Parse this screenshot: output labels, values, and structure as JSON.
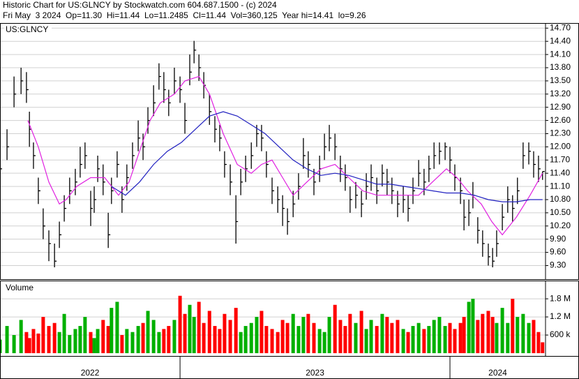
{
  "chart_data": {
    "type": "ohlc",
    "title": "Historic Chart for US:GLNCY by Stockwatch.com 604.687.1500 - (c) 2024",
    "subtitle": "Fri May  3 2024  Op=11.30  Hi=11.44  Lo=11.2485  Cl=11.44  Vol=360,125  Year hi=14.41  lo=9.26",
    "symbol": "US:GLNCY",
    "color": "#000000",
    "grid": true,
    "xlim": [
      2022.333,
      2024.354
    ],
    "year_breaks": [
      2023,
      2024
    ],
    "year_labels": [
      "2022",
      "2023",
      "2024"
    ],
    "ylim": [
      8.99,
      14.8
    ],
    "yticks": [
      {
        "value": 9.3,
        "label": "9.30"
      },
      {
        "value": 9.6,
        "label": "9.60"
      },
      {
        "value": 9.9,
        "label": "9.90"
      },
      {
        "value": 10.2,
        "label": "10.20"
      },
      {
        "value": 10.5,
        "label": "10.50"
      },
      {
        "value": 10.8,
        "label": "10.80"
      },
      {
        "value": 11.1,
        "label": "11.10"
      },
      {
        "value": 11.4,
        "label": "11.40"
      },
      {
        "value": 11.7,
        "label": "11.70"
      },
      {
        "value": 12.0,
        "label": "12.00"
      },
      {
        "value": 12.3,
        "label": "12.30"
      },
      {
        "value": 12.6,
        "label": "12.60"
      },
      {
        "value": 12.9,
        "label": "12.90"
      },
      {
        "value": 13.2,
        "label": "13.20"
      },
      {
        "value": 13.5,
        "label": "13.50"
      },
      {
        "value": 13.8,
        "label": "13.80"
      },
      {
        "value": 14.1,
        "label": "14.10"
      },
      {
        "value": 14.4,
        "label": "14.40"
      },
      {
        "value": 14.7,
        "label": "14.70"
      }
    ],
    "x": [
      2022.333,
      2022.359,
      2022.385,
      2022.411,
      2022.431,
      2022.442,
      2022.457,
      2022.475,
      2022.493,
      2022.514,
      2022.535,
      2022.553,
      2022.571,
      2022.591,
      2022.612,
      2022.63,
      2022.648,
      2022.669,
      2022.682,
      2022.695,
      2022.715,
      2022.734,
      2022.746,
      2022.767,
      2022.785,
      2022.803,
      2022.824,
      2022.845,
      2022.863,
      2022.881,
      2022.902,
      2022.922,
      2022.94,
      2022.958,
      2022.979,
      2023.0,
      2023.018,
      2023.036,
      2023.052,
      2023.07,
      2023.088,
      2023.109,
      2023.129,
      2023.147,
      2023.165,
      2023.186,
      2023.207,
      2023.225,
      2023.243,
      2023.264,
      2023.284,
      2023.302,
      2023.32,
      2023.341,
      2023.362,
      2023.38,
      2023.398,
      2023.419,
      2023.439,
      2023.457,
      2023.475,
      2023.496,
      2023.517,
      2023.535,
      2023.553,
      2023.574,
      2023.594,
      2023.612,
      2023.63,
      2023.651,
      2023.672,
      2023.69,
      2023.708,
      2023.729,
      2023.749,
      2023.767,
      2023.785,
      2023.806,
      2023.827,
      2023.845,
      2023.863,
      2023.884,
      2023.904,
      2023.922,
      2023.941,
      2023.961,
      2023.982,
      2024.0,
      2024.018,
      2024.039,
      2024.052,
      2024.07,
      2024.085,
      2024.103,
      2024.121,
      2024.142,
      2024.158,
      2024.173,
      2024.194,
      2024.214,
      2024.232,
      2024.25,
      2024.271,
      2024.292,
      2024.31,
      2024.328,
      2024.343
    ],
    "high": [
      11.9,
      12.4,
      13.6,
      13.8,
      13.7,
      12.8,
      12.1,
      11.3,
      10.6,
      10.1,
      9.8,
      10.3,
      10.9,
      11.3,
      11.5,
      12.0,
      12.1,
      11.0,
      11.1,
      11.8,
      11.6,
      10.5,
      11.3,
      11.9,
      11.1,
      11.6,
      12.1,
      12.6,
      12.3,
      12.9,
      13.4,
      13.9,
      13.7,
      13.3,
      13.8,
      13.6,
      13.0,
      14.1,
      14.41,
      14.1,
      13.7,
      13.2,
      12.7,
      12.5,
      11.9,
      11.6,
      10.9,
      11.5,
      11.8,
      12.1,
      12.5,
      12.5,
      11.9,
      11.3,
      11.1,
      10.9,
      10.6,
      11.0,
      11.4,
      12.2,
      11.9,
      11.5,
      11.8,
      12.3,
      12.5,
      12.3,
      11.8,
      11.6,
      11.1,
      11.2,
      11.0,
      11.4,
      11.6,
      11.3,
      11.6,
      11.5,
      11.3,
      11.0,
      11.1,
      10.9,
      11.3,
      11.7,
      11.5,
      11.8,
      12.1,
      12.1,
      12.1,
      12.0,
      11.6,
      11.3,
      10.8,
      10.8,
      11.2,
      10.4,
      10.1,
      9.8,
      9.7,
      10.1,
      10.7,
      11.1,
      10.9,
      11.3,
      12.1,
      12.1,
      11.9,
      11.8,
      11.44
    ],
    "low": [
      11.1,
      11.7,
      12.9,
      13.2,
      13.0,
      12.0,
      11.5,
      10.7,
      9.9,
      9.4,
      9.26,
      9.7,
      10.3,
      10.7,
      10.9,
      11.3,
      11.5,
      10.2,
      10.5,
      11.2,
      10.9,
      9.7,
      10.7,
      11.3,
      10.5,
      11.0,
      11.5,
      11.9,
      11.7,
      12.3,
      12.7,
      13.3,
      13.0,
      12.7,
      13.2,
      13.0,
      12.3,
      13.4,
      13.9,
      13.5,
      13.1,
      12.5,
      12.1,
      11.9,
      11.3,
      10.9,
      9.8,
      10.9,
      11.2,
      11.5,
      12.0,
      11.9,
      11.3,
      10.7,
      10.5,
      10.2,
      10.0,
      10.4,
      10.8,
      11.5,
      11.3,
      10.9,
      11.2,
      11.7,
      11.9,
      11.7,
      11.2,
      11.0,
      10.5,
      10.6,
      10.4,
      10.8,
      11.0,
      10.7,
      11.1,
      10.9,
      10.7,
      10.4,
      10.5,
      10.3,
      10.7,
      11.1,
      10.9,
      11.2,
      11.5,
      11.6,
      11.7,
      11.4,
      11.0,
      10.7,
      10.1,
      10.2,
      10.6,
      9.8,
      9.5,
      9.3,
      9.26,
      9.5,
      10.1,
      10.5,
      10.3,
      10.7,
      11.5,
      11.6,
      11.3,
      11.2,
      11.2485
    ],
    "close": [
      11.5,
      12.0,
      13.2,
      13.5,
      13.3,
      12.4,
      11.8,
      11.0,
      10.2,
      9.8,
      9.4,
      10.0,
      10.6,
      11.0,
      11.2,
      11.6,
      11.8,
      10.6,
      10.8,
      11.5,
      11.2,
      10.0,
      11.0,
      11.6,
      10.8,
      11.3,
      11.8,
      12.2,
      12.0,
      12.6,
      13.0,
      13.6,
      13.3,
      13.0,
      13.5,
      13.3,
      12.6,
      13.7,
      14.2,
      13.8,
      13.4,
      12.8,
      12.4,
      12.2,
      11.6,
      11.2,
      10.3,
      11.2,
      11.5,
      11.8,
      12.3,
      12.2,
      11.6,
      11.0,
      10.8,
      10.6,
      10.3,
      10.7,
      11.1,
      11.8,
      11.6,
      11.2,
      11.5,
      12.0,
      12.2,
      12.0,
      11.5,
      11.3,
      10.8,
      10.9,
      10.7,
      11.1,
      11.3,
      11.0,
      11.4,
      11.2,
      11.0,
      10.7,
      10.8,
      10.6,
      11.0,
      11.4,
      11.2,
      11.5,
      11.8,
      11.9,
      12.0,
      11.7,
      11.3,
      11.0,
      10.4,
      10.5,
      10.9,
      10.1,
      9.8,
      9.5,
      9.4,
      9.8,
      10.4,
      10.8,
      10.6,
      11.0,
      11.8,
      11.9,
      11.6,
      11.5,
      11.44
    ],
    "series": [
      {
        "color": "#e020e0",
        "x": [
          2022.436,
          2022.475,
          2022.514,
          2022.553,
          2022.578,
          2022.617,
          2022.669,
          2022.721,
          2022.772,
          2022.811,
          2022.85,
          2022.889,
          2022.927,
          2022.979,
          2023.018,
          2023.07,
          2023.109,
          2023.16,
          2023.212,
          2023.264,
          2023.302,
          2023.341,
          2023.38,
          2023.419,
          2023.47,
          2023.522,
          2023.574,
          2023.625,
          2023.677,
          2023.729,
          2023.78,
          2023.832,
          2023.884,
          2023.935,
          2023.987,
          2024.026,
          2024.065,
          2024.116,
          2024.155,
          2024.194,
          2024.246,
          2024.297,
          2024.343
        ],
        "values": [
          12.6,
          12.0,
          11.2,
          10.7,
          10.8,
          11.1,
          11.3,
          11.3,
          10.9,
          11.2,
          11.9,
          12.6,
          13.0,
          13.2,
          13.5,
          13.6,
          13.2,
          12.3,
          11.6,
          11.4,
          11.6,
          11.7,
          11.3,
          10.9,
          11.2,
          11.5,
          11.6,
          11.3,
          11.0,
          10.9,
          10.9,
          10.9,
          10.9,
          11.2,
          11.5,
          11.3,
          11.0,
          10.7,
          10.3,
          10.0,
          10.4,
          10.9,
          11.4
        ]
      },
      {
        "color": "#2020c0",
        "x": [
          2022.746,
          2022.798,
          2022.85,
          2022.902,
          2022.953,
          2023.005,
          2023.057,
          2023.109,
          2023.16,
          2023.212,
          2023.264,
          2023.315,
          2023.367,
          2023.419,
          2023.47,
          2023.522,
          2023.574,
          2023.625,
          2023.677,
          2023.729,
          2023.78,
          2023.832,
          2023.884,
          2023.935,
          2023.987,
          2024.039,
          2024.09,
          2024.142,
          2024.194,
          2024.246,
          2024.297,
          2024.343
        ],
        "values": [
          11.1,
          10.9,
          11.2,
          11.6,
          11.9,
          12.1,
          12.4,
          12.7,
          12.8,
          12.7,
          12.5,
          12.3,
          12.0,
          11.7,
          11.5,
          11.35,
          11.4,
          11.35,
          11.25,
          11.15,
          11.15,
          11.1,
          11.05,
          11.0,
          10.95,
          10.95,
          10.9,
          10.8,
          10.75,
          10.75,
          10.8,
          10.8
        ]
      }
    ],
    "volume": {
      "label": "Volume",
      "up_color": "#00b000",
      "down_color": "#ff0000",
      "ylim": [
        0,
        2380000
      ],
      "yticks": [
        {
          "value": 600000,
          "label": "600 k"
        },
        {
          "value": 1200000,
          "label": "1.2 M"
        },
        {
          "value": 1800000,
          "label": "1.8 M"
        }
      ],
      "values": [
        450000,
        900000,
        600000,
        1100000,
        700000,
        500000,
        800000,
        650000,
        1200000,
        900000,
        1000000,
        700000,
        1300000,
        600000,
        800000,
        900000,
        1200000,
        700000,
        500000,
        800000,
        1100000,
        900000,
        1500000,
        1700000,
        600000,
        800000,
        700000,
        900000,
        1000000,
        1400000,
        1100000,
        700000,
        800000,
        900000,
        1100000,
        1900000,
        1300000,
        1600000,
        1200000,
        1700000,
        1000000,
        1400000,
        900000,
        800000,
        1300000,
        1100000,
        1500000,
        700000,
        900000,
        1000000,
        1200000,
        1400000,
        900000,
        800000,
        700000,
        1100000,
        1000000,
        1300000,
        900000,
        1200000,
        1300000,
        1000000,
        800000,
        700000,
        1200000,
        1600000,
        1100000,
        900000,
        1300000,
        1000000,
        1400000,
        800000,
        1100000,
        900000,
        1300000,
        1200000,
        1000000,
        1100000,
        800000,
        700000,
        900000,
        1000000,
        800000,
        900000,
        1100000,
        1200000,
        900000,
        1000000,
        800000,
        1000000,
        1200000,
        1700000,
        1800000,
        1100000,
        1300000,
        1400000,
        1200000,
        1000000,
        1500000,
        1000000,
        1800000,
        1200000,
        1300000,
        1000000,
        1100000,
        700000,
        360125
      ]
    }
  }
}
